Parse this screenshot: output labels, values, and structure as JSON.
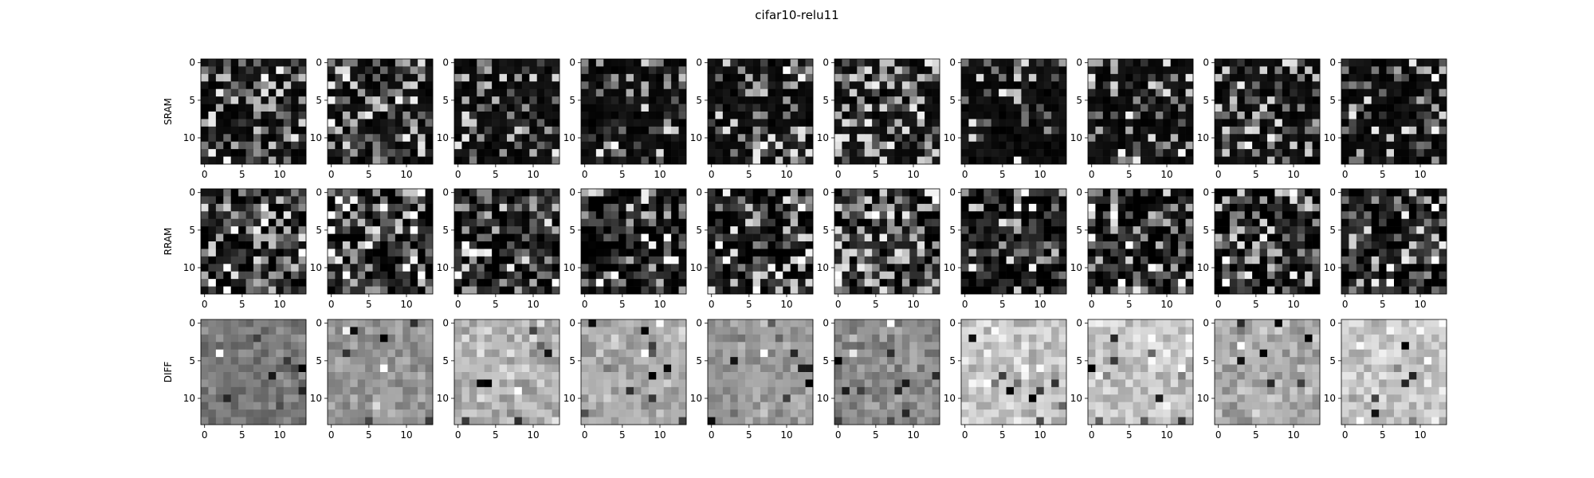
{
  "figure": {
    "title": "cifar10-relu11"
  },
  "chart_data": {
    "type": "heatmap",
    "title": "cifar10-relu11",
    "colormap": "gray",
    "grid": false,
    "layout_rows": 3,
    "layout_cols": 10,
    "row_labels": [
      "SRAM",
      "RRAM",
      "DIFF"
    ],
    "x_ticks": [
      "0",
      "5",
      "10"
    ],
    "y_ticks": [
      "0",
      "5",
      "10"
    ],
    "matrix_shape": [
      14,
      14
    ],
    "xlim": [
      -0.5,
      13.5
    ],
    "ylim": [
      13.5,
      -0.5
    ],
    "value_note": "per-pixel gray intensity values (0-255) are not legible at this resolution; matrices are approximated by a seeded pattern in the render script"
  }
}
